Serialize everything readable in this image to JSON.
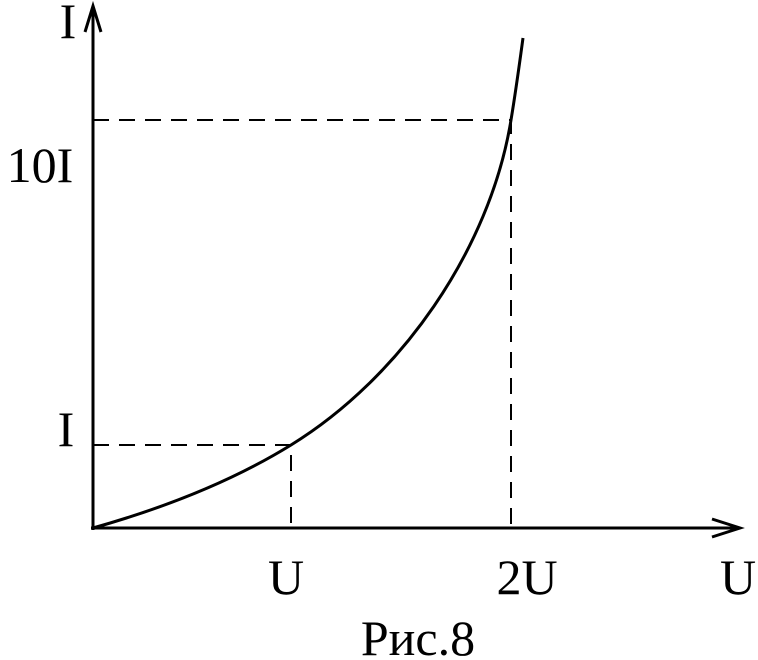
{
  "axes": {
    "y_label": "I",
    "x_label": "U"
  },
  "y_ticks": [
    "10I",
    "I"
  ],
  "x_ticks": [
    "U",
    "2U"
  ],
  "caption": "Рис.8"
}
